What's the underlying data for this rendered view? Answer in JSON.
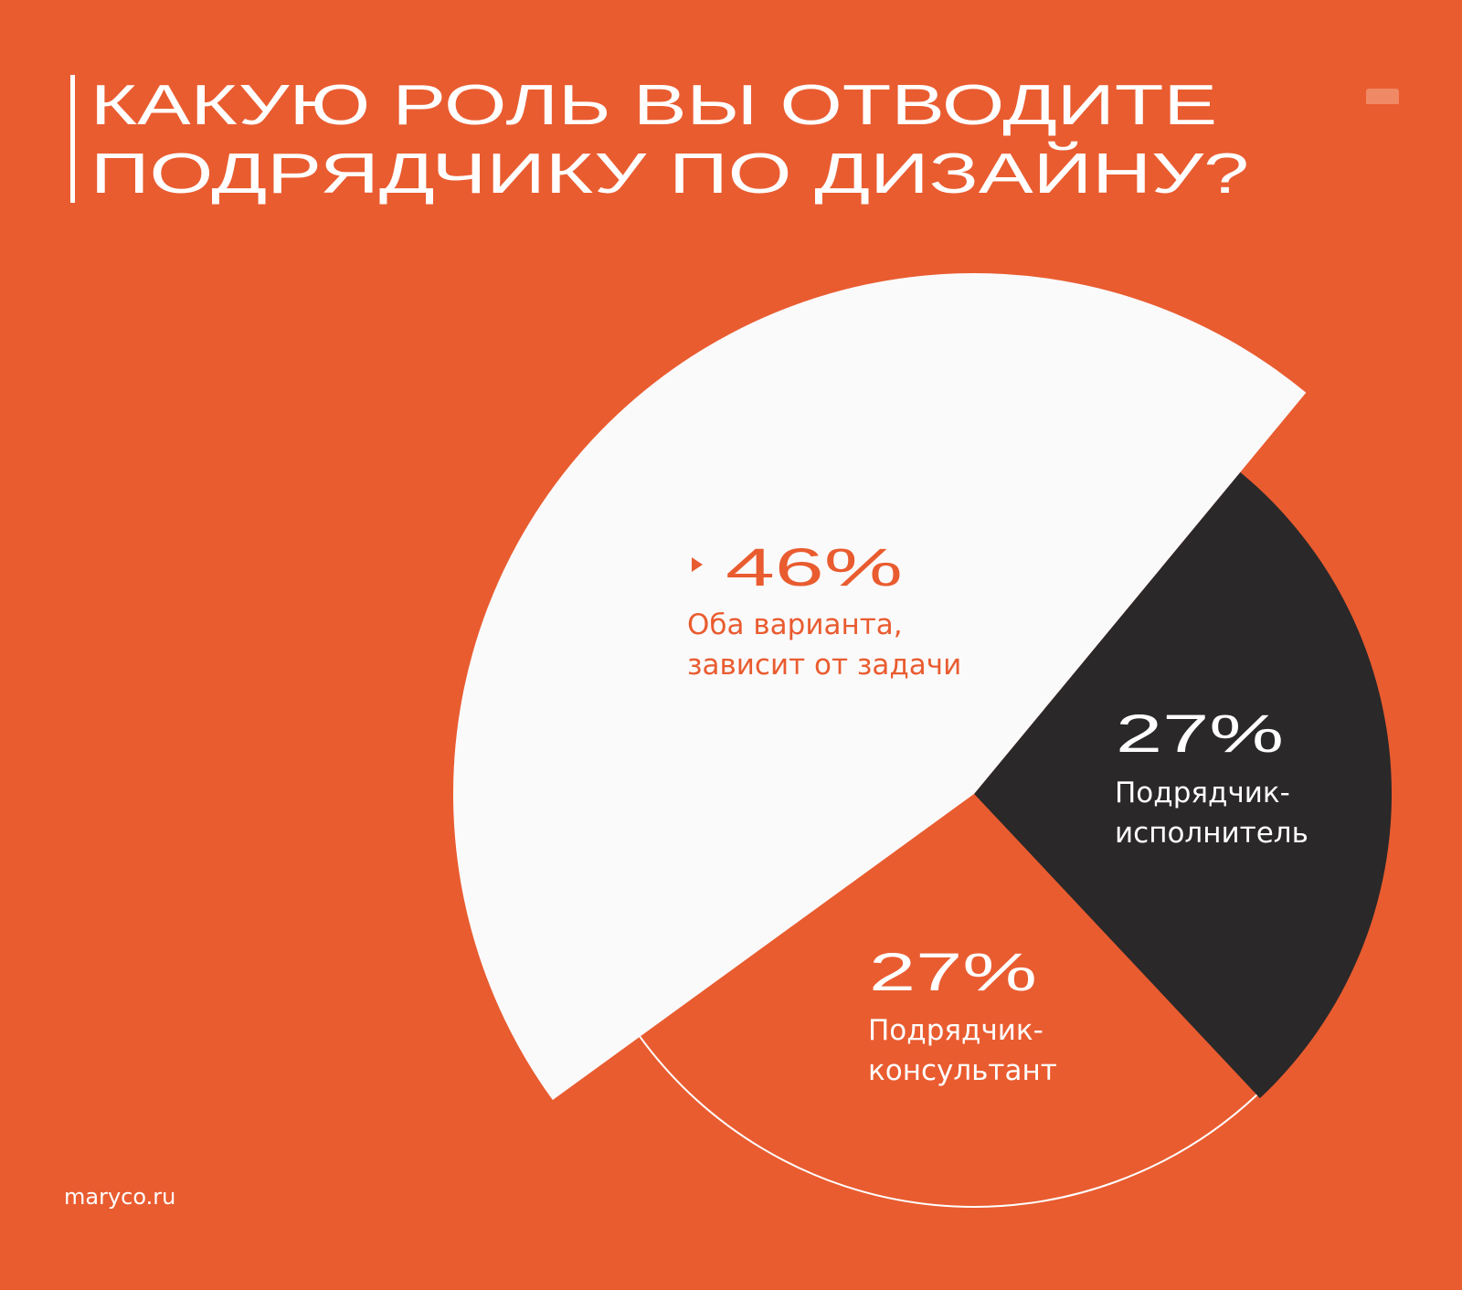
{
  "title": {
    "line1": "КАКУЮ РОЛЬ ВЫ ОТВОДИТЕ",
    "line2": "ПОДРЯДЧИКУ ПО ДИЗАЙНУ?"
  },
  "footer": {
    "site": "maryco.ru"
  },
  "colors": {
    "background": "#E95C30",
    "white_slice": "#FBFAFB",
    "dark_slice": "#2A2829",
    "accent": "#E95C30"
  },
  "chart_data": {
    "type": "pie",
    "title": "КАКУЮ РОЛЬ ВЫ ОТВОДИТЕ ПОДРЯДЧИКУ ПО ДИЗАЙНУ?",
    "slices": [
      {
        "label_line1": "Оба варианта,",
        "label_line2": "зависит от задачи",
        "value": 46,
        "value_label": "46%",
        "color": "#FBFAFB",
        "highlighted": true
      },
      {
        "label_line1": "Подрядчик-",
        "label_line2": "исполнитель",
        "value": 27,
        "value_label": "27%",
        "color": "#2A2829"
      },
      {
        "label_line1": "Подрядчик-",
        "label_line2": "консультант",
        "value": 27,
        "value_label": "27%",
        "color": "#E95C30"
      }
    ]
  }
}
